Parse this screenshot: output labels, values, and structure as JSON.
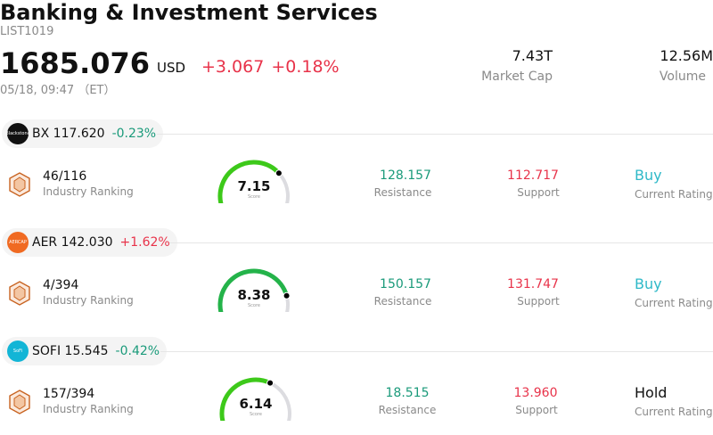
{
  "header": {
    "title": "Banking & Investment Services",
    "code": "LIST1019",
    "price": "1685.076",
    "currency": "USD",
    "change_abs": "+3.067",
    "change_pct": "+0.18%",
    "timestamp": "05/18, 09:47 （ET）",
    "market_cap_value": "7.43T",
    "market_cap_label": "Market Cap",
    "volume_value": "12.56M",
    "volume_label": "Volume"
  },
  "stocks": [
    {
      "logo_text": "Blackstone",
      "ticker": "BX",
      "price": "117.620",
      "pct": "-0.23%",
      "rank": "46/116",
      "rank_label": "Industry Ranking",
      "score": "7.15",
      "score_level": 0.715,
      "score_caption": "Score",
      "resistance": "128.157",
      "resistance_label": "Resistance",
      "support": "112.717",
      "support_label": "Support",
      "rating": "Buy",
      "rating_label": "Current Rating"
    },
    {
      "logo_text": "AERCAP",
      "ticker": "AER",
      "price": "142.030",
      "pct": "+1.62%",
      "rank": "4/394",
      "rank_label": "Industry Ranking",
      "score": "8.38",
      "score_level": 0.838,
      "score_caption": "Score",
      "resistance": "150.157",
      "resistance_label": "Resistance",
      "support": "131.747",
      "support_label": "Support",
      "rating": "Buy",
      "rating_label": "Current Rating"
    },
    {
      "logo_text": "SoFi",
      "ticker": "SOFI",
      "price": "15.545",
      "pct": "-0.42%",
      "rank": "157/394",
      "rank_label": "Industry Ranking",
      "score": "6.14",
      "score_level": 0.614,
      "score_caption": "Score",
      "resistance": "18.515",
      "resistance_label": "Resistance",
      "support": "13.960",
      "support_label": "Support",
      "rating": "Hold",
      "rating_label": "Current Rating"
    }
  ],
  "colors": {
    "up": "#e8334a",
    "down": "#1a9a7a",
    "buy": "#2fb9c8",
    "gauge_green": "#3dc91a",
    "gauge_green_dark": "#24b34a",
    "gauge_track": "#dcdce0"
  },
  "icons": {
    "rank": "hexagon-rank-icon"
  }
}
